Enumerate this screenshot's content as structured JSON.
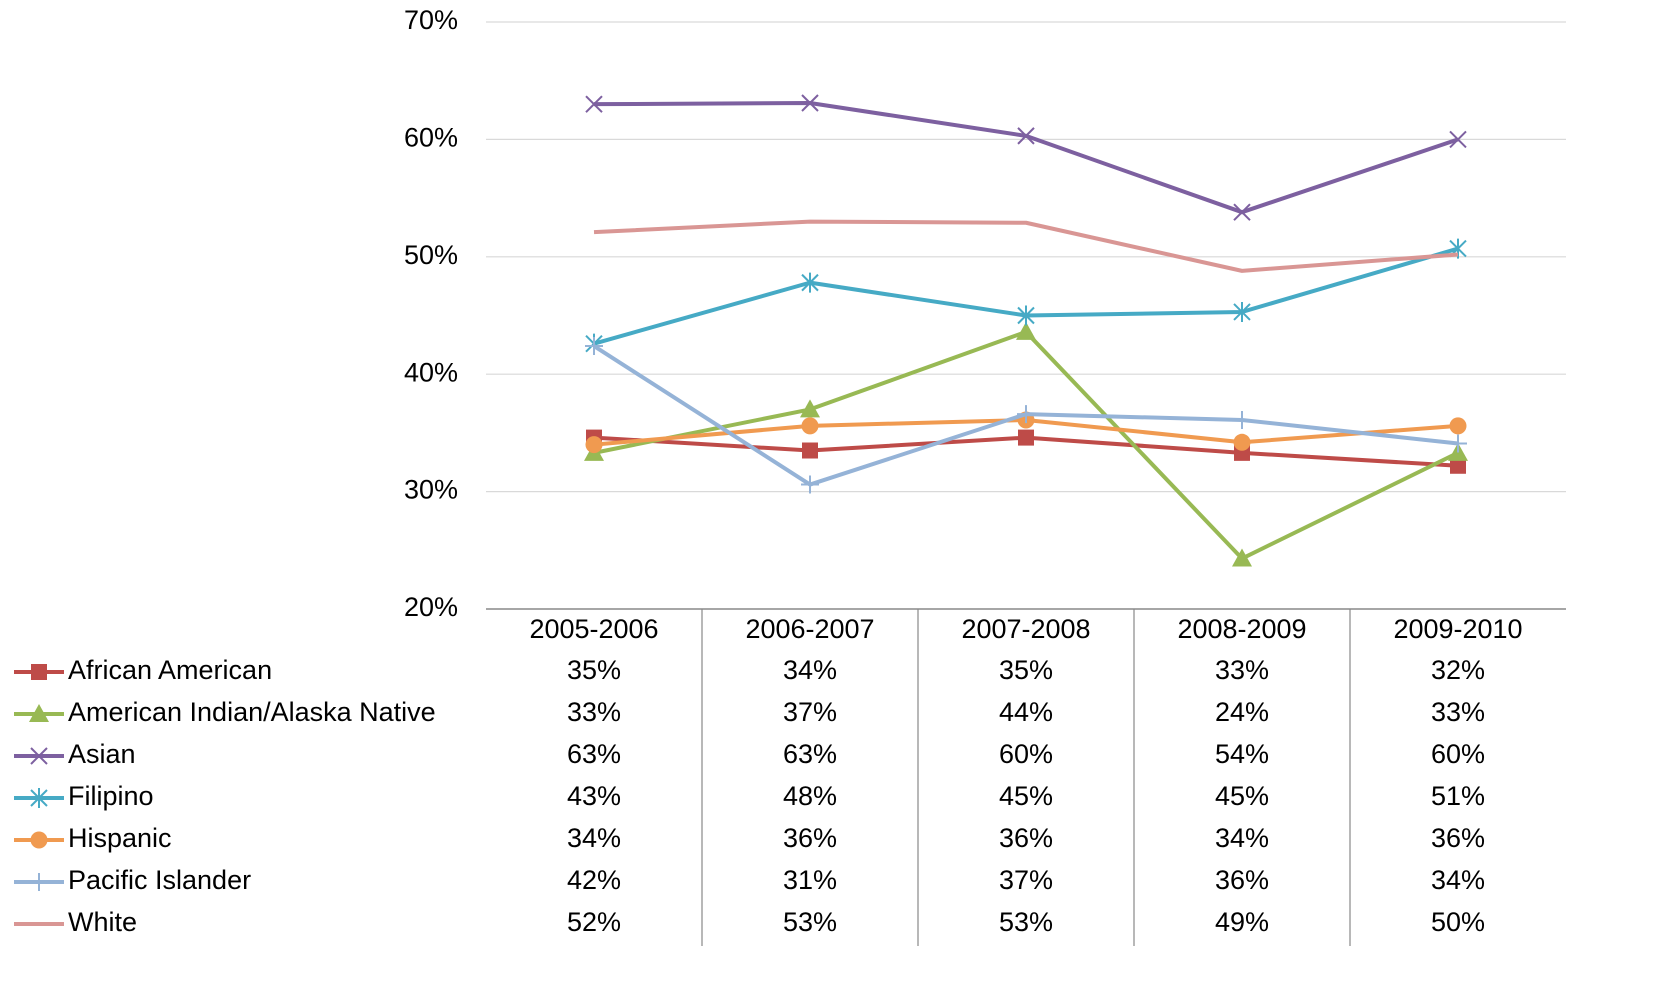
{
  "chart_data": {
    "type": "line",
    "categories": [
      "2005-2006",
      "2006-2007",
      "2007-2008",
      "2008-2009",
      "2009-2010"
    ],
    "ylim": [
      20,
      70
    ],
    "yticks": [
      {
        "value": 20,
        "label": "20%"
      },
      {
        "value": 30,
        "label": "30%"
      },
      {
        "value": 40,
        "label": "40%"
      },
      {
        "value": 50,
        "label": "50%"
      },
      {
        "value": 60,
        "label": "60%"
      },
      {
        "value": 70,
        "label": "70%"
      }
    ],
    "grid": true,
    "series": [
      {
        "name": "African American",
        "color": "#be4b48",
        "marker": "square",
        "values": [
          34.6,
          33.5,
          34.6,
          33.3,
          32.2
        ],
        "value_labels": [
          "35%",
          "34%",
          "35%",
          "33%",
          "32%"
        ]
      },
      {
        "name": "American Indian/Alaska Native",
        "color": "#98b954",
        "marker": "triangle",
        "values": [
          33.3,
          37.0,
          43.6,
          24.3,
          33.3
        ],
        "value_labels": [
          "33%",
          "37%",
          "44%",
          "24%",
          "33%"
        ]
      },
      {
        "name": "Asian",
        "color": "#7d60a0",
        "marker": "x",
        "values": [
          63.0,
          63.1,
          60.3,
          53.8,
          60.0
        ],
        "value_labels": [
          "63%",
          "63%",
          "60%",
          "54%",
          "60%"
        ]
      },
      {
        "name": "Filipino",
        "color": "#46aac5",
        "marker": "asterisk",
        "values": [
          42.6,
          47.8,
          45.0,
          45.3,
          50.7
        ],
        "value_labels": [
          "43%",
          "48%",
          "45%",
          "45%",
          "51%"
        ]
      },
      {
        "name": "Hispanic",
        "color": "#f09a50",
        "marker": "circle",
        "values": [
          34.0,
          35.6,
          36.1,
          34.2,
          35.6
        ],
        "value_labels": [
          "34%",
          "36%",
          "36%",
          "34%",
          "36%"
        ]
      },
      {
        "name": "Pacific Islander",
        "color": "#95b3d7",
        "marker": "plus",
        "values": [
          42.4,
          30.6,
          36.6,
          36.1,
          34.1
        ],
        "value_labels": [
          "42%",
          "31%",
          "37%",
          "36%",
          "34%"
        ]
      },
      {
        "name": "White",
        "color": "#d99694",
        "marker": "none",
        "values": [
          52.1,
          53.0,
          52.9,
          48.8,
          50.2
        ],
        "value_labels": [
          "52%",
          "53%",
          "53%",
          "49%",
          "50%"
        ]
      }
    ]
  }
}
